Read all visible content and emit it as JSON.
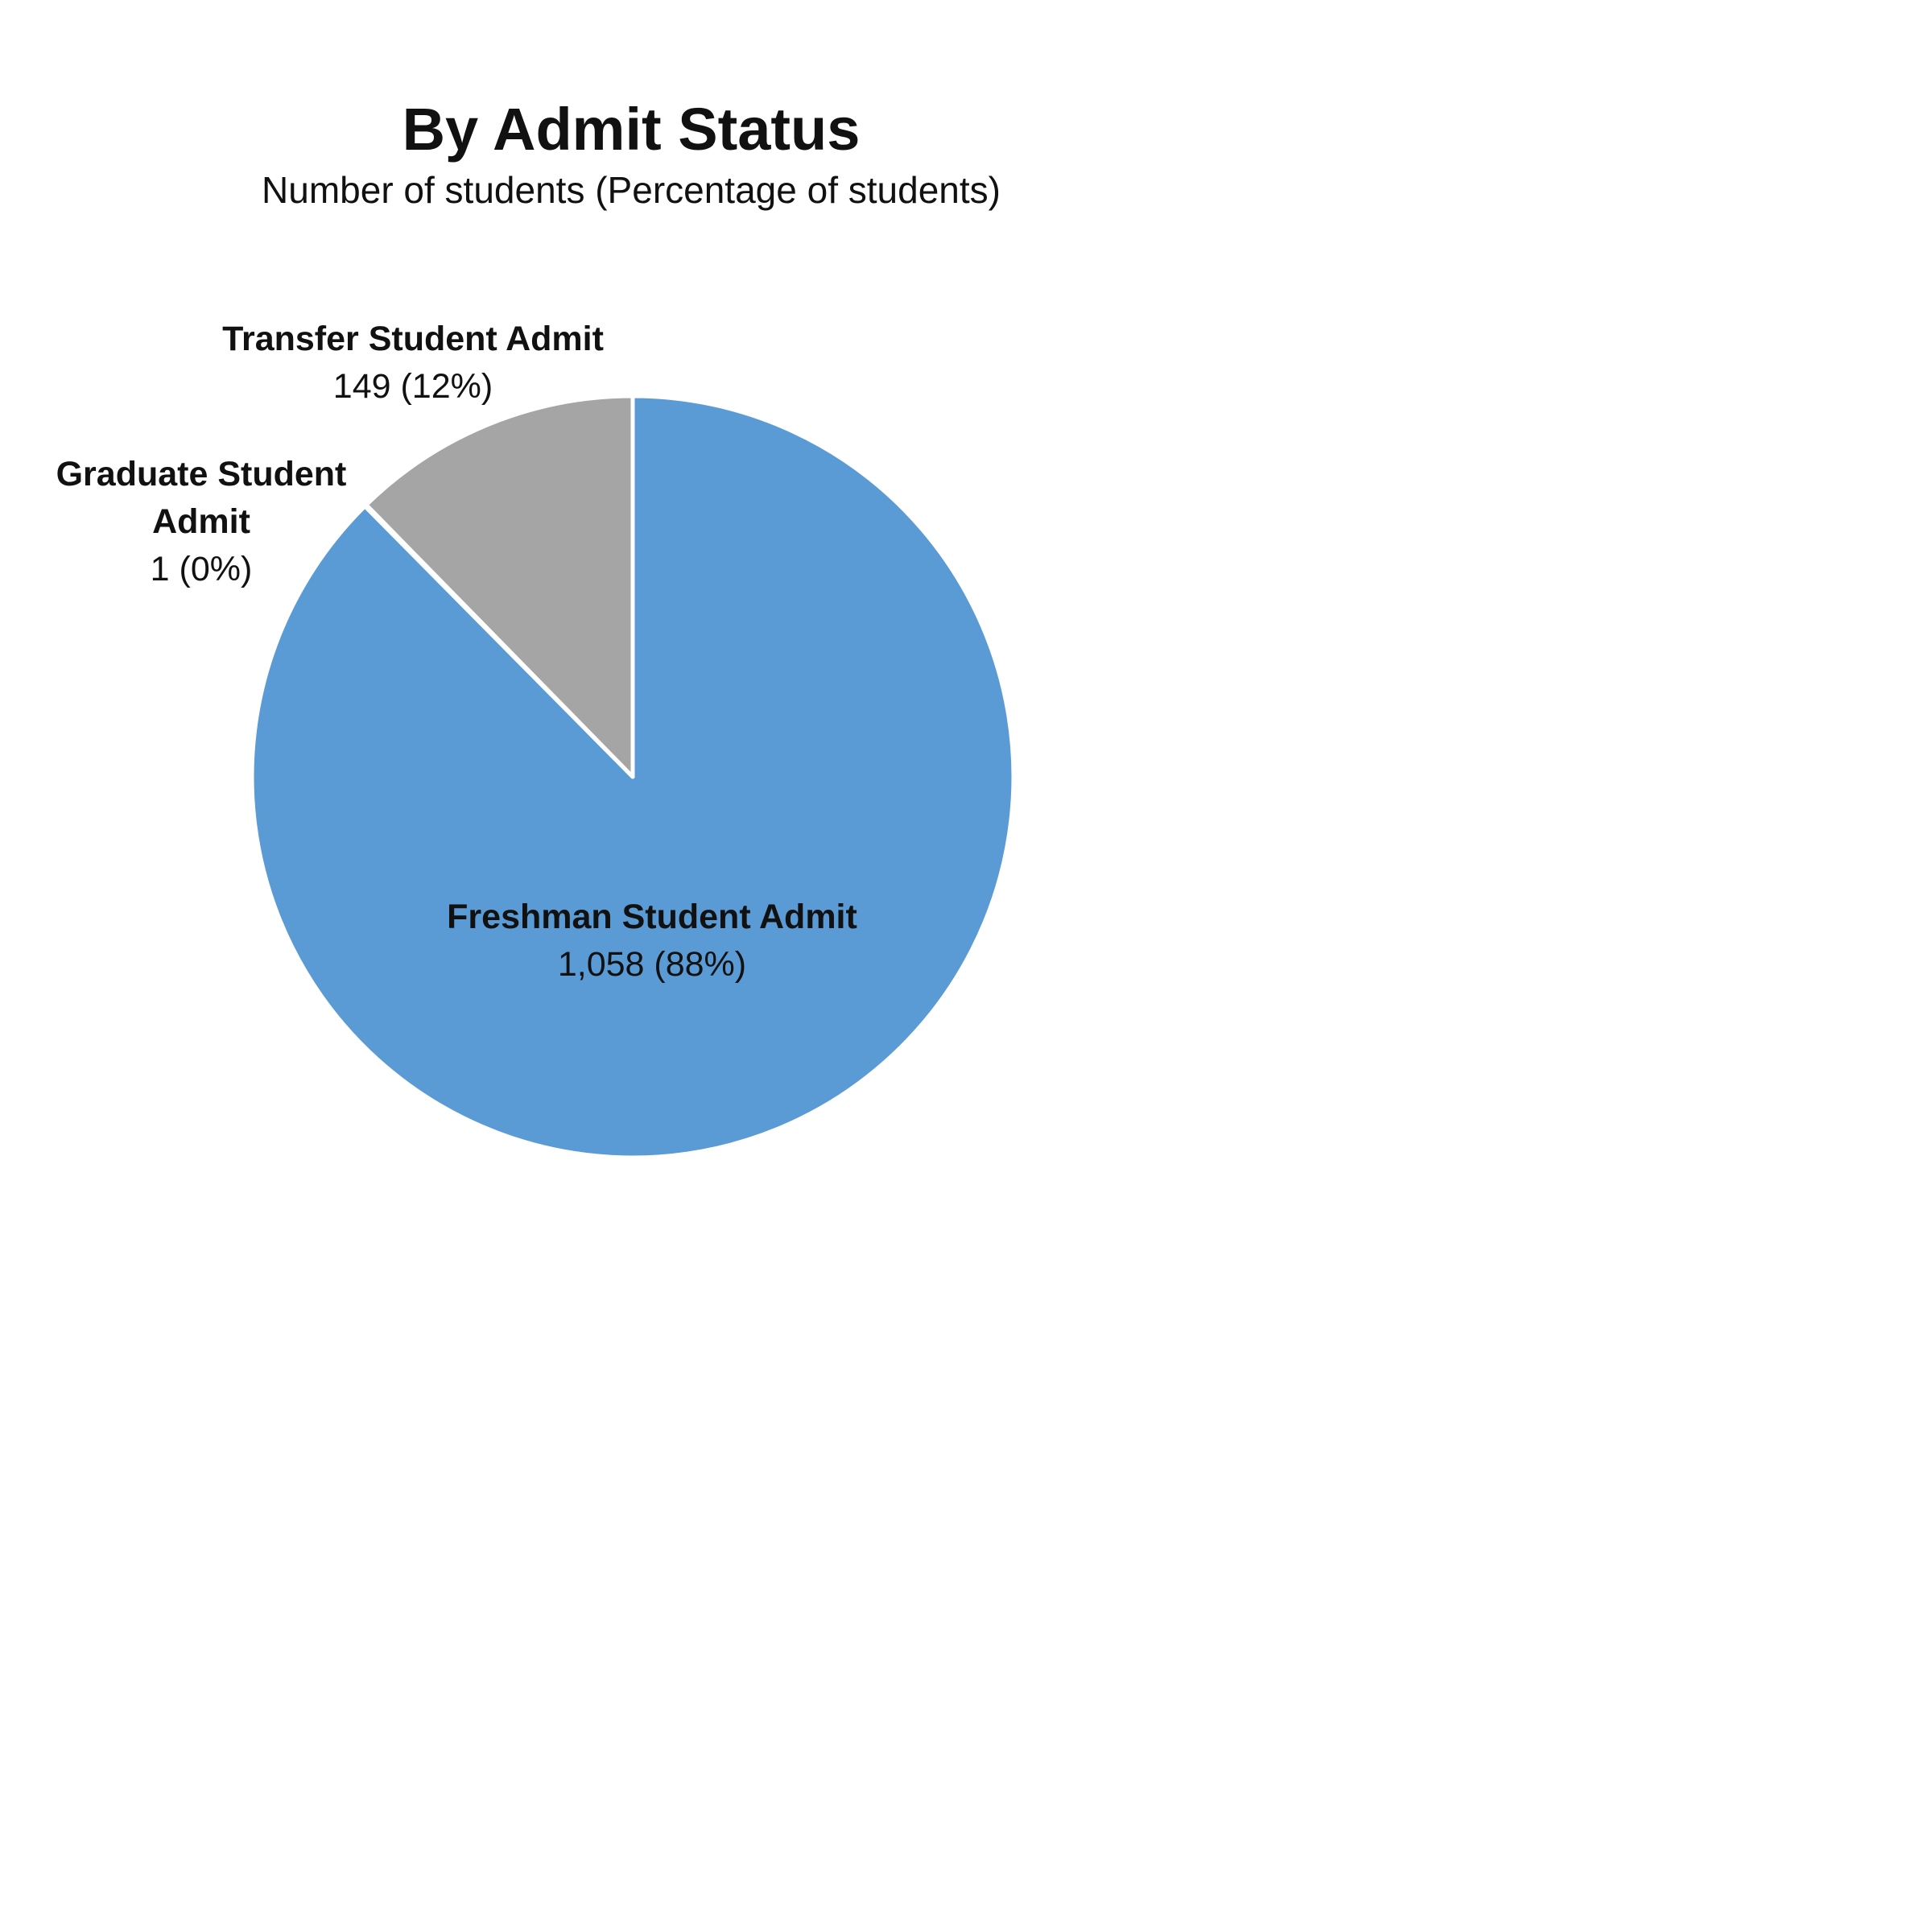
{
  "chart_data": {
    "type": "pie",
    "title": "By Admit Status",
    "subtitle": "Number of students (Percentage of students)",
    "slices": [
      {
        "name": "Freshman Student Admit",
        "value": 1058,
        "percent": 88,
        "value_label": "1,058 (88%)",
        "color": "#5b9bd5"
      },
      {
        "name": "Graduate Student Admit",
        "name_lines": [
          "Graduate Student",
          "Admit"
        ],
        "value": 1,
        "percent": 0,
        "value_label": "1 (0%)",
        "color": "#a5a5a5"
      },
      {
        "name": "Transfer Student Admit",
        "value": 149,
        "percent": 12,
        "value_label": "149 (12%)",
        "color": "#a5a5a5"
      }
    ]
  }
}
